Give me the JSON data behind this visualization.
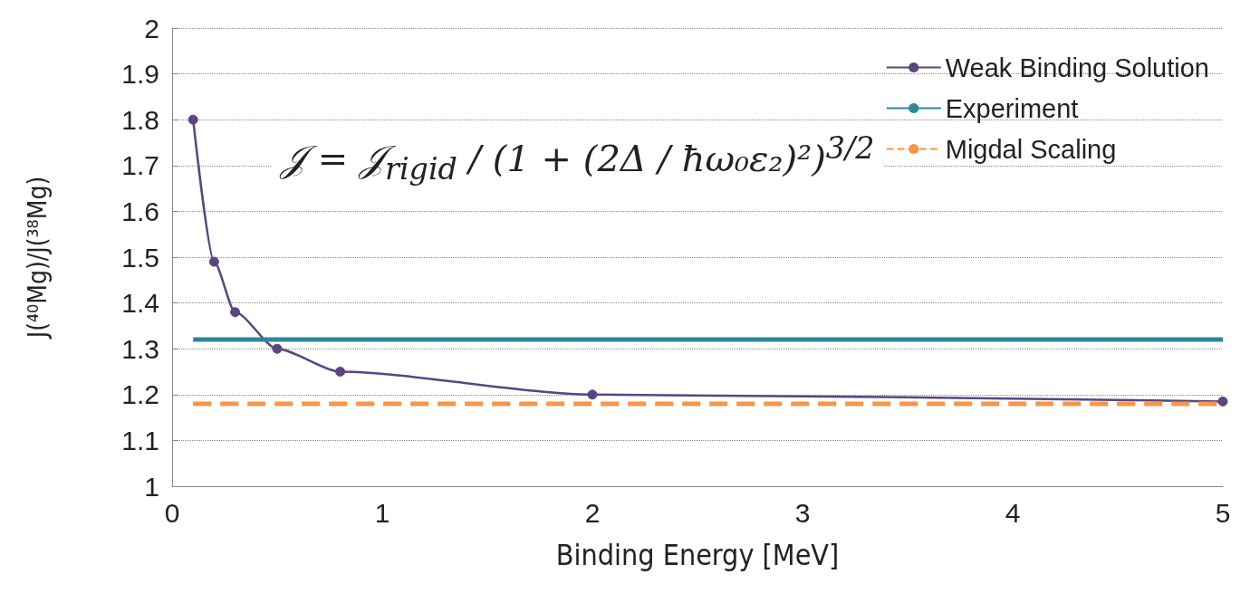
{
  "chart_data": {
    "type": "line",
    "xlabel": "Binding Energy [MeV]",
    "ylabel": "J(⁴⁰Mg)/J(³⁸Mg)",
    "xlim": [
      0,
      5
    ],
    "xticks": [
      0,
      1,
      2,
      3,
      4,
      5
    ],
    "ylim": [
      1,
      2
    ],
    "yticks": [
      1,
      1.1,
      1.2,
      1.3,
      1.4,
      1.5,
      1.6,
      1.7,
      1.8,
      1.9,
      2
    ],
    "grid": "y",
    "legend": "top right",
    "annotations": [
      "𝒥 = 𝒥$_{rigid}$ / (1 + (2Δ / ħω₀ε₂)²)$^{3/2}$"
    ],
    "series": [
      {
        "name": "Weak Binding Solution",
        "color": "#5b4580",
        "marker": "circle",
        "line_style": "solid",
        "x": [
          0.1,
          0.2,
          0.3,
          0.5,
          0.8,
          2,
          5
        ],
        "values": [
          1.8,
          1.49,
          1.38,
          1.3,
          1.25,
          1.2,
          1.185
        ]
      },
      {
        "name": "Experiment",
        "color": "#31859c",
        "marker": "none",
        "line_style": "solid",
        "x": [
          0.1,
          5
        ],
        "values": [
          1.32,
          1.32
        ]
      },
      {
        "name": "Migdal Scaling",
        "color": "#f79646",
        "marker": "none",
        "line_style": "dashed",
        "x": [
          0.1,
          5
        ],
        "values": [
          1.18,
          1.18
        ]
      }
    ]
  }
}
